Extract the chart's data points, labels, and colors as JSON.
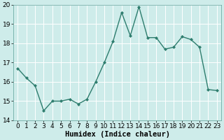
{
  "x": [
    0,
    1,
    2,
    3,
    4,
    5,
    6,
    7,
    8,
    9,
    10,
    11,
    12,
    13,
    14,
    15,
    16,
    17,
    18,
    19,
    20,
    21,
    22,
    23
  ],
  "y": [
    16.7,
    16.2,
    15.8,
    14.5,
    15.0,
    15.0,
    15.1,
    14.85,
    15.1,
    16.0,
    17.0,
    18.1,
    19.6,
    18.4,
    19.9,
    18.3,
    18.3,
    17.7,
    17.8,
    18.35,
    18.2,
    17.8,
    15.6,
    15.55
  ],
  "line_color": "#2e7d6e",
  "marker": "D",
  "marker_size": 2.0,
  "bg_color": "#ceecea",
  "grid_color": "#ffffff",
  "xlabel": "Humidex (Indice chaleur)",
  "ylim": [
    14,
    20
  ],
  "xlim_min": -0.5,
  "xlim_max": 23.5,
  "yticks": [
    14,
    15,
    16,
    17,
    18,
    19,
    20
  ],
  "xticks": [
    0,
    1,
    2,
    3,
    4,
    5,
    6,
    7,
    8,
    9,
    10,
    11,
    12,
    13,
    14,
    15,
    16,
    17,
    18,
    19,
    20,
    21,
    22,
    23
  ],
  "xlabel_fontsize": 7.5,
  "tick_fontsize": 6.5,
  "linewidth": 1.0
}
